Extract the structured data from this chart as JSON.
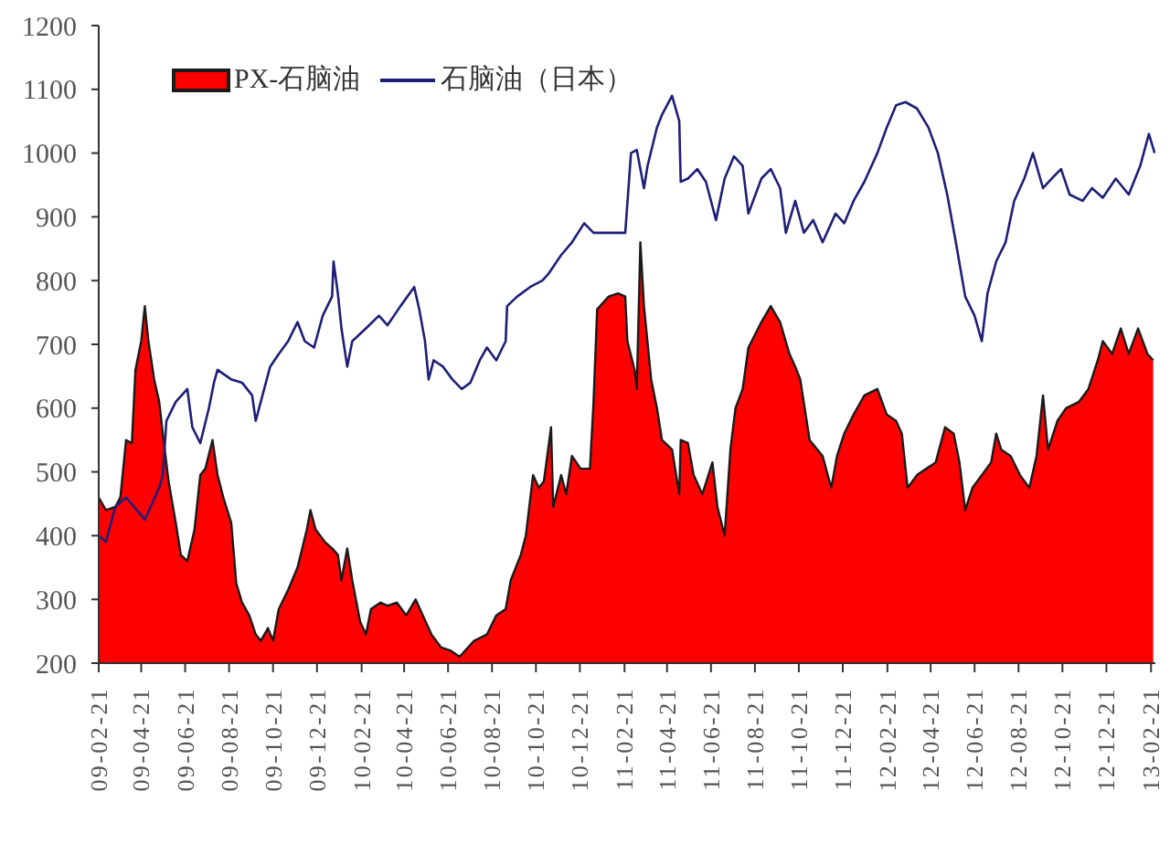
{
  "chart_data": {
    "type": "area",
    "series": [
      {
        "name": "PX-石脑油",
        "type": "area",
        "color": "#ff0000",
        "x": [
          "2009-02-21",
          "2009-03-03",
          "2009-03-16",
          "2009-03-23",
          "2009-03-31",
          "2009-04-08",
          "2009-04-13",
          "2009-04-21",
          "2009-04-26",
          "2009-05-01",
          "2009-05-09",
          "2009-05-16",
          "2009-05-21",
          "2009-05-29",
          "2009-06-08",
          "2009-06-15",
          "2009-06-24",
          "2009-07-04",
          "2009-07-12",
          "2009-07-19",
          "2009-07-29",
          "2009-08-05",
          "2009-08-13",
          "2009-08-24",
          "2009-08-31",
          "2009-09-08",
          "2009-09-18",
          "2009-09-27",
          "2009-10-04",
          "2009-10-14",
          "2009-10-21",
          "2009-10-29",
          "2009-11-11",
          "2009-11-24",
          "2009-12-07",
          "2009-12-12",
          "2009-12-19",
          "2010-01-01",
          "2010-01-11",
          "2010-01-19",
          "2010-01-24",
          "2010-02-01",
          "2010-02-08",
          "2010-02-19",
          "2010-02-27",
          "2010-03-06",
          "2010-03-19",
          "2010-03-29",
          "2010-04-11",
          "2010-04-24",
          "2010-05-07",
          "2010-05-17",
          "2010-05-29",
          "2010-06-11",
          "2010-06-24",
          "2010-07-07",
          "2010-07-15",
          "2010-07-27",
          "2010-08-14",
          "2010-08-27",
          "2010-09-09",
          "2010-09-16",
          "2010-09-30",
          "2010-10-07",
          "2010-10-17",
          "2010-10-25",
          "2010-11-01",
          "2010-11-11",
          "2010-11-14",
          "2010-11-25",
          "2010-12-02",
          "2010-12-10",
          "2010-12-22",
          "2011-01-04",
          "2011-01-09",
          "2011-01-14",
          "2011-01-30",
          "2011-02-12",
          "2011-02-22",
          "2011-02-25",
          "2011-03-07",
          "2011-03-10",
          "2011-03-15",
          "2011-03-20",
          "2011-03-30",
          "2011-04-07",
          "2011-04-14",
          "2011-04-28",
          "2011-05-08",
          "2011-05-10",
          "2011-05-20",
          "2011-05-28",
          "2011-06-09",
          "2011-06-23",
          "2011-06-30",
          "2011-07-10",
          "2011-07-18",
          "2011-07-25",
          "2011-08-04",
          "2011-08-12",
          "2011-08-30",
          "2011-09-12",
          "2011-09-25",
          "2011-10-08",
          "2011-10-16",
          "2011-10-23",
          "2011-11-05",
          "2011-11-23",
          "2011-12-05",
          "2011-12-13",
          "2011-12-23",
          "2012-01-05",
          "2012-01-20",
          "2012-02-07",
          "2012-02-20",
          "2012-03-04",
          "2012-03-12",
          "2012-03-20",
          "2012-04-02",
          "2012-04-15",
          "2012-04-28",
          "2012-05-11",
          "2012-05-23",
          "2012-05-31",
          "2012-06-08",
          "2012-06-18",
          "2012-07-01",
          "2012-07-14",
          "2012-07-21",
          "2012-07-28",
          "2012-08-10",
          "2012-08-23",
          "2012-09-05",
          "2012-09-15",
          "2012-09-24",
          "2012-10-01",
          "2012-10-14",
          "2012-10-26",
          "2012-11-13",
          "2012-11-26",
          "2012-12-09",
          "2012-12-16",
          "2012-12-29",
          "2013-01-10",
          "2013-01-21",
          "2013-02-03",
          "2013-02-16",
          "2013-02-24"
        ],
        "values": [
          460,
          440,
          445,
          460,
          550,
          545,
          660,
          705,
          760,
          705,
          645,
          610,
          560,
          485,
          420,
          370,
          360,
          410,
          495,
          505,
          550,
          495,
          460,
          420,
          325,
          295,
          275,
          245,
          235,
          255,
          235,
          285,
          315,
          350,
          410,
          440,
          410,
          390,
          380,
          370,
          330,
          380,
          330,
          265,
          245,
          285,
          295,
          290,
          295,
          275,
          300,
          275,
          245,
          225,
          220,
          210,
          220,
          235,
          245,
          275,
          285,
          330,
          370,
          400,
          495,
          475,
          485,
          570,
          445,
          495,
          465,
          525,
          505,
          505,
          610,
          755,
          775,
          780,
          775,
          705,
          660,
          630,
          860,
          760,
          645,
          600,
          550,
          535,
          465,
          550,
          545,
          495,
          465,
          515,
          445,
          400,
          535,
          600,
          630,
          695,
          735,
          760,
          735,
          685,
          665,
          645,
          550,
          525,
          475,
          525,
          560,
          590,
          620,
          630,
          590,
          580,
          560,
          475,
          495,
          505,
          515,
          570,
          560,
          515,
          440,
          475,
          495,
          515,
          560,
          535,
          525,
          495,
          475,
          525,
          620,
          535,
          580,
          600,
          610,
          630,
          675,
          705,
          685,
          725,
          685,
          725,
          685,
          675
        ]
      },
      {
        "name": "石脑油（日本）",
        "type": "line",
        "color": "#1e1e78",
        "x": [
          "2009-02-21",
          "2009-03-03",
          "2009-03-16",
          "2009-03-31",
          "2009-04-26",
          "2009-05-16",
          "2009-05-21",
          "2009-05-26",
          "2009-06-08",
          "2009-06-24",
          "2009-07-01",
          "2009-07-12",
          "2009-07-24",
          "2009-07-31",
          "2009-08-05",
          "2009-08-24",
          "2009-09-08",
          "2009-09-22",
          "2009-09-27",
          "2009-10-04",
          "2009-10-17",
          "2009-10-29",
          "2009-11-11",
          "2009-11-24",
          "2009-12-04",
          "2009-12-17",
          "2009-12-29",
          "2010-01-11",
          "2010-01-13",
          "2010-01-19",
          "2010-01-24",
          "2010-02-01",
          "2010-02-08",
          "2010-02-27",
          "2010-03-17",
          "2010-03-29",
          "2010-04-16",
          "2010-05-05",
          "2010-05-12",
          "2010-05-20",
          "2010-05-25",
          "2010-06-01",
          "2010-06-14",
          "2010-06-27",
          "2010-07-10",
          "2010-07-22",
          "2010-08-04",
          "2010-08-14",
          "2010-08-27",
          "2010-09-09",
          "2010-09-11",
          "2010-09-25",
          "2010-10-13",
          "2010-10-30",
          "2010-11-07",
          "2010-11-25",
          "2010-12-10",
          "2010-12-27",
          "2011-01-09",
          "2011-01-22",
          "2011-02-22",
          "2011-03-02",
          "2011-03-10",
          "2011-03-20",
          "2011-03-25",
          "2011-04-07",
          "2011-04-14",
          "2011-04-28",
          "2011-05-08",
          "2011-05-10",
          "2011-05-20",
          "2011-06-02",
          "2011-06-14",
          "2011-06-28",
          "2011-07-10",
          "2011-07-23",
          "2011-08-04",
          "2011-08-12",
          "2011-08-30",
          "2011-09-12",
          "2011-09-25",
          "2011-10-03",
          "2011-10-16",
          "2011-10-28",
          "2011-11-10",
          "2011-11-23",
          "2011-12-11",
          "2011-12-23",
          "2012-01-05",
          "2012-01-20",
          "2012-02-07",
          "2012-02-20",
          "2012-03-04",
          "2012-03-17",
          "2012-04-02",
          "2012-04-18",
          "2012-05-01",
          "2012-05-14",
          "2012-05-26",
          "2012-06-08",
          "2012-06-21",
          "2012-07-01",
          "2012-07-09",
          "2012-07-21",
          "2012-08-03",
          "2012-08-15",
          "2012-08-29",
          "2012-09-10",
          "2012-09-24",
          "2012-10-06",
          "2012-10-19",
          "2012-10-31",
          "2012-11-18",
          "2012-12-01",
          "2012-12-16",
          "2013-01-03",
          "2013-01-21",
          "2013-02-06",
          "2013-02-18",
          "2013-02-26"
        ],
        "values": [
          400,
          390,
          445,
          460,
          425,
          475,
          495,
          580,
          610,
          630,
          570,
          545,
          600,
          640,
          660,
          645,
          640,
          620,
          580,
          610,
          665,
          685,
          705,
          735,
          705,
          695,
          745,
          775,
          830,
          780,
          725,
          665,
          705,
          725,
          745,
          730,
          760,
          790,
          755,
          705,
          645,
          675,
          665,
          645,
          630,
          640,
          675,
          695,
          675,
          705,
          760,
          775,
          790,
          800,
          810,
          840,
          860,
          890,
          875,
          875,
          875,
          1000,
          1005,
          945,
          980,
          1040,
          1060,
          1090,
          1050,
          955,
          960,
          975,
          955,
          895,
          960,
          995,
          980,
          905,
          960,
          975,
          945,
          875,
          925,
          875,
          895,
          860,
          905,
          890,
          925,
          955,
          1000,
          1040,
          1075,
          1080,
          1070,
          1040,
          1000,
          935,
          860,
          775,
          745,
          705,
          780,
          830,
          860,
          925,
          960,
          1000,
          945,
          960,
          975,
          935,
          925,
          945,
          930,
          960,
          935,
          980,
          1030,
          1000
        ]
      }
    ],
    "xlim": [
      "2009-02-21",
      "2013-02-27"
    ],
    "xticks": [
      {
        "value": "2009-02-21",
        "label": "09-02-21"
      },
      {
        "value": "2009-04-21",
        "label": "09-04-21"
      },
      {
        "value": "2009-06-21",
        "label": "09-06-21"
      },
      {
        "value": "2009-08-21",
        "label": "09-08-21"
      },
      {
        "value": "2009-10-21",
        "label": "09-10-21"
      },
      {
        "value": "2009-12-21",
        "label": "09-12-21"
      },
      {
        "value": "2010-02-21",
        "label": "10-02-21"
      },
      {
        "value": "2010-04-21",
        "label": "10-04-21"
      },
      {
        "value": "2010-06-21",
        "label": "10-06-21"
      },
      {
        "value": "2010-08-21",
        "label": "10-08-21"
      },
      {
        "value": "2010-10-21",
        "label": "10-10-21"
      },
      {
        "value": "2010-12-21",
        "label": "10-12-21"
      },
      {
        "value": "2011-02-21",
        "label": "11-02-21"
      },
      {
        "value": "2011-04-21",
        "label": "11-04-21"
      },
      {
        "value": "2011-06-21",
        "label": "11-06-21"
      },
      {
        "value": "2011-08-21",
        "label": "11-08-21"
      },
      {
        "value": "2011-10-21",
        "label": "11-10-21"
      },
      {
        "value": "2011-12-21",
        "label": "11-12-21"
      },
      {
        "value": "2012-02-21",
        "label": "12-02-21"
      },
      {
        "value": "2012-04-21",
        "label": "12-04-21"
      },
      {
        "value": "2012-06-21",
        "label": "12-06-21"
      },
      {
        "value": "2012-08-21",
        "label": "12-08-21"
      },
      {
        "value": "2012-10-21",
        "label": "12-10-21"
      },
      {
        "value": "2012-12-21",
        "label": "12-12-21"
      },
      {
        "value": "2013-02-21",
        "label": "13-02-21"
      }
    ],
    "ylim": [
      200,
      1200
    ],
    "yticks": [
      200,
      300,
      400,
      500,
      600,
      700,
      800,
      900,
      1000,
      1100,
      1200
    ],
    "legend": "top left"
  }
}
